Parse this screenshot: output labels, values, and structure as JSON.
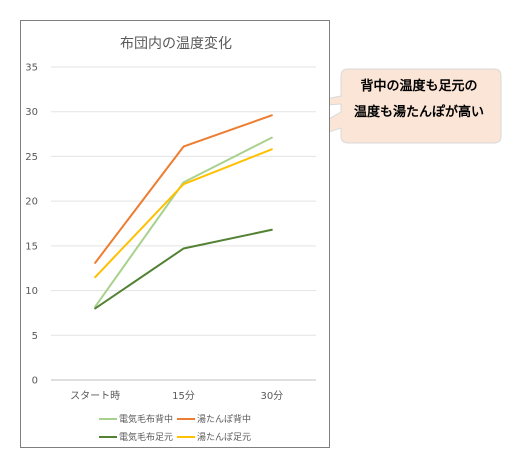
{
  "chart_data": {
    "type": "line",
    "title": "布団内の温度変化",
    "categories": [
      "スタート時",
      "15分",
      "30分"
    ],
    "ylim": [
      0,
      35
    ],
    "yticks": [
      0,
      5,
      10,
      15,
      20,
      25,
      30,
      35
    ],
    "grid": true,
    "legend_position": "bottom",
    "series": [
      {
        "name": "電気毛布背中",
        "color": "#a9d18e",
        "values": [
          8.2,
          22.1,
          27.1
        ]
      },
      {
        "name": "湯たんぽ背中",
        "color": "#ed7d31",
        "values": [
          13.1,
          26.1,
          29.6
        ]
      },
      {
        "name": "電気毛布足元",
        "color": "#548235",
        "values": [
          8.0,
          14.7,
          16.8
        ]
      },
      {
        "name": "湯たんぽ足元",
        "color": "#ffc000",
        "values": [
          11.5,
          21.9,
          25.8
        ]
      }
    ]
  },
  "callout": {
    "line1": "背中の温度も足元の",
    "line2": "温度も湯たんぽが高い",
    "fill": "#fbe5d6"
  }
}
